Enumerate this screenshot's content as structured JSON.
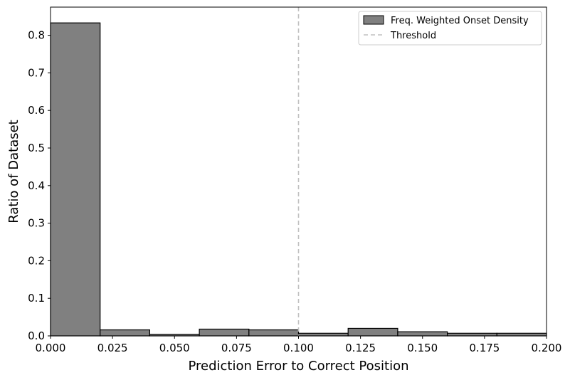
{
  "chart_data": {
    "type": "bar",
    "subtype": "histogram",
    "bin_edges": [
      0.0,
      0.02,
      0.04,
      0.06,
      0.08,
      0.1,
      0.12,
      0.14,
      0.16,
      0.18,
      0.2
    ],
    "values": [
      0.833,
      0.016,
      0.004,
      0.018,
      0.016,
      0.007,
      0.02,
      0.011,
      0.007,
      0.007
    ],
    "xlabel": "Prediction Error to Correct Position",
    "ylabel": "Ratio of Dataset",
    "xlim": [
      0.0,
      0.2
    ],
    "ylim": [
      0.0,
      0.875
    ],
    "xticks": [
      0.0,
      0.025,
      0.05,
      0.075,
      0.1,
      0.125,
      0.15,
      0.175,
      0.2
    ],
    "xtick_labels": [
      "0.000",
      "0.025",
      "0.050",
      "0.075",
      "0.100",
      "0.125",
      "0.150",
      "0.175",
      "0.200"
    ],
    "yticks": [
      0.0,
      0.1,
      0.2,
      0.3,
      0.4,
      0.5,
      0.6,
      0.7,
      0.8
    ],
    "ytick_labels": [
      "0.0",
      "0.1",
      "0.2",
      "0.3",
      "0.4",
      "0.5",
      "0.6",
      "0.7",
      "0.8"
    ],
    "series": [
      {
        "name": "Freq. Weighted Onset Density",
        "color": "#808080",
        "edgecolor": "#000000"
      }
    ],
    "threshold": {
      "name": "Threshold",
      "x": 0.1,
      "color": "#c0c0c0",
      "style": "dashed"
    },
    "legend_position": "top-right",
    "grid": false
  }
}
